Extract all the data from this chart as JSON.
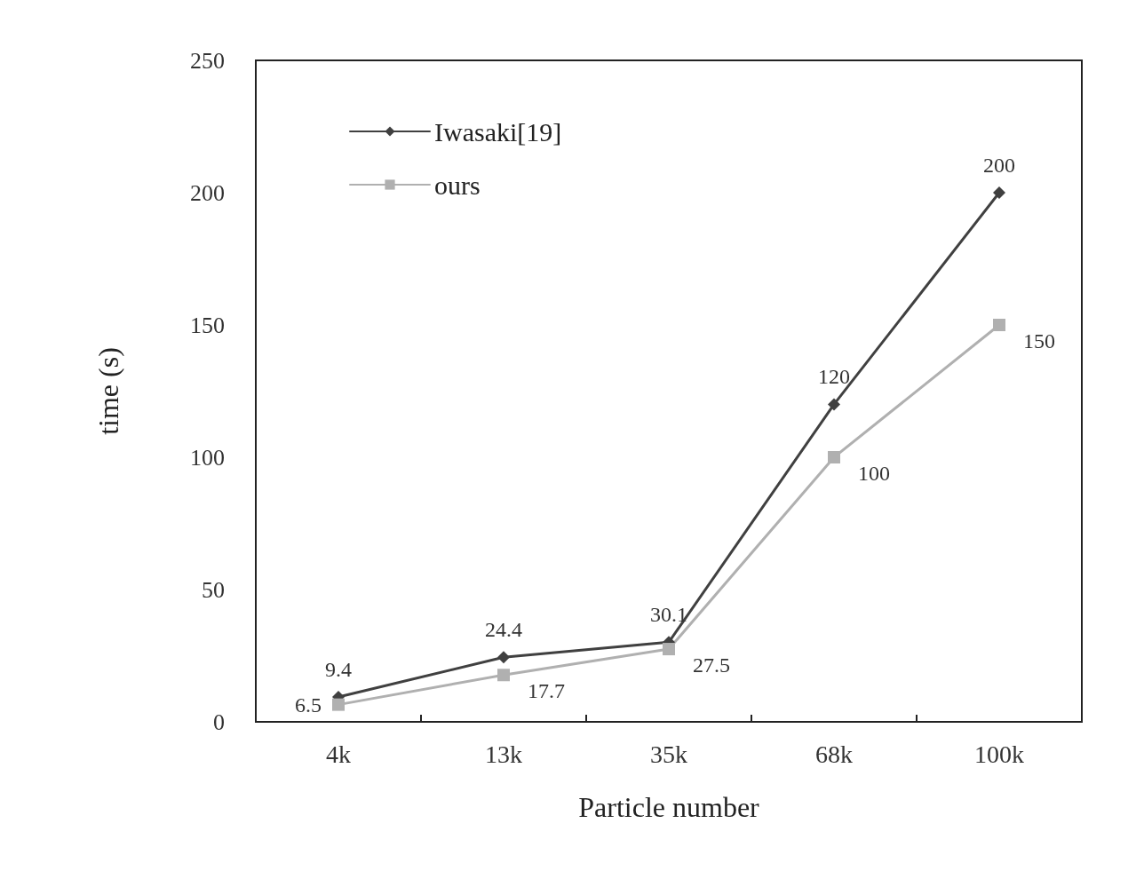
{
  "chart_data": {
    "type": "line",
    "xlabel": "Particle number",
    "ylabel": "time (s)",
    "categories": [
      "4k",
      "13k",
      "35k",
      "68k",
      "100k"
    ],
    "series": [
      {
        "name": "Iwasaki[19]",
        "color": "#404040",
        "marker": "diamond",
        "values": [
          9.4,
          24.4,
          30.1,
          120,
          200
        ]
      },
      {
        "name": "ours",
        "color": "#b0b0b0",
        "marker": "square",
        "values": [
          6.5,
          17.7,
          27.5,
          100,
          150
        ]
      }
    ],
    "ylim": [
      0,
      250
    ],
    "yticks": [
      0,
      50,
      100,
      150,
      200,
      250
    ],
    "grid": false,
    "legend": "top left",
    "data_labels": true,
    "line_style": "solid"
  }
}
